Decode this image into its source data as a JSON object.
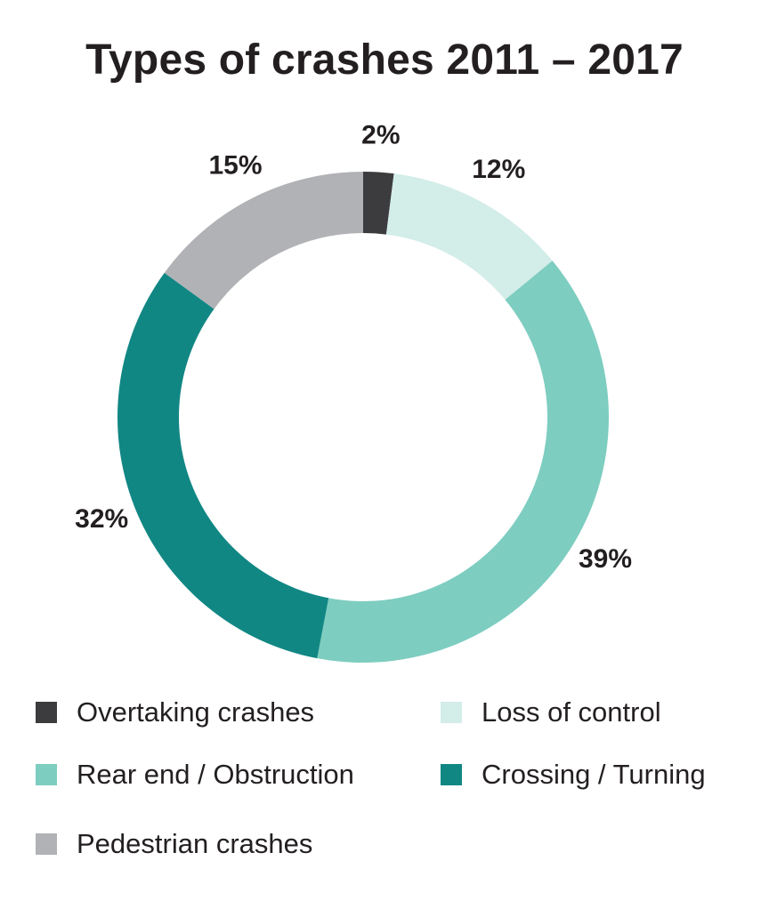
{
  "chart_data": {
    "type": "pie",
    "title": "Types of crashes 2011 – 2017",
    "categories": [
      "Overtaking crashes",
      "Loss of control",
      "Rear end / Obstruction",
      "Crossing / Turning",
      "Pedestrian crashes"
    ],
    "values": [
      2,
      12,
      39,
      32,
      15
    ],
    "value_labels": [
      "2%",
      "12%",
      "39%",
      "32%",
      "15%"
    ],
    "colors": [
      "#3c3c3e",
      "#d3ede9",
      "#7dcdc0",
      "#118784",
      "#b1b2b5"
    ],
    "donut": true,
    "legend_position": "bottom"
  }
}
